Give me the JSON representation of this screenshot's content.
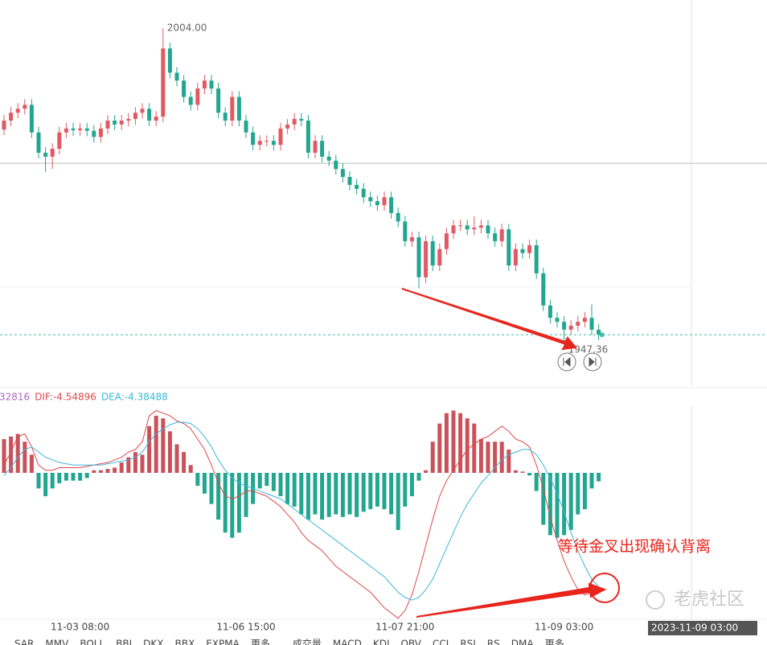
{
  "chart_data": [
    {
      "type": "candlestick",
      "open": [
        1986.0,
        1987.6,
        1989.0,
        1989.7,
        1990.4,
        1985.5,
        1981.9,
        1981.2,
        1982.6,
        1985.5,
        1986.2,
        1985.9,
        1986.2,
        1985.8,
        1984.7,
        1986.2,
        1987.6,
        1986.9,
        1987.6,
        1987.9,
        1989.0,
        1989.7,
        1987.6,
        1988.3,
        2000.4,
        1996.1,
        1994.7,
        1991.8,
        1990.4,
        1993.3,
        1994.7,
        1993.3,
        1989.0,
        1987.6,
        1991.8,
        1987.6,
        1985.5,
        1983.3,
        1984.0,
        1984.0,
        1983.3,
        1986.2,
        1986.9,
        1987.9,
        1987.6,
        1981.9,
        1984.0,
        1981.2,
        1980.5,
        1979.0,
        1977.6,
        1976.2,
        1975.5,
        1974.0,
        1973.3,
        1972.6,
        1974.0,
        1971.2,
        1969.7,
        1966.2,
        1966.9,
        1959.8,
        1966.2,
        1961.9,
        1964.8,
        1967.6,
        1969.0,
        1969.0,
        1968.3,
        1968.6,
        1969.0,
        1967.6,
        1966.2,
        1968.3,
        1961.9,
        1964.8,
        1964.1,
        1965.5,
        1960.5,
        1954.8,
        1952.6,
        1951.9,
        1950.5,
        1951.2,
        1951.9,
        1952.6,
        1950.5
      ],
      "high": [
        1988.6,
        1990.0,
        1990.7,
        1991.4,
        1991.4,
        1986.5,
        1982.9,
        1983.6,
        1986.5,
        1987.2,
        1987.2,
        1987.2,
        1987.2,
        1986.8,
        1987.2,
        1988.6,
        1988.6,
        1988.6,
        1988.9,
        1990.0,
        1990.7,
        1990.7,
        1989.3,
        2004.0,
        2001.4,
        1997.1,
        1995.7,
        1992.8,
        1994.3,
        1995.7,
        1995.7,
        1994.3,
        1990.0,
        1992.8,
        1992.8,
        1988.6,
        1986.5,
        1985.0,
        1985.0,
        1985.0,
        1987.2,
        1987.9,
        1988.9,
        1988.9,
        1988.6,
        1985.0,
        1985.0,
        1982.2,
        1981.5,
        1980.0,
        1978.6,
        1977.2,
        1976.5,
        1975.0,
        1974.3,
        1975.0,
        1975.0,
        1972.2,
        1970.7,
        1967.9,
        1967.9,
        1967.2,
        1967.2,
        1965.8,
        1968.6,
        1970.0,
        1970.0,
        1970.0,
        1970.6,
        1970.0,
        1970.0,
        1968.6,
        1969.3,
        1969.3,
        1965.8,
        1965.8,
        1966.5,
        1966.5,
        1961.5,
        1955.8,
        1953.6,
        1952.9,
        1952.2,
        1952.9,
        1953.6,
        1955.0,
        1951.5
      ],
      "low": [
        1985.0,
        1986.6,
        1988.0,
        1988.7,
        1984.5,
        1980.9,
        1978.5,
        1979.0,
        1981.6,
        1984.5,
        1984.9,
        1984.9,
        1984.8,
        1983.7,
        1983.7,
        1985.2,
        1985.9,
        1985.9,
        1986.6,
        1986.9,
        1988.0,
        1986.6,
        1986.6,
        1987.3,
        1995.1,
        1993.7,
        1990.8,
        1989.4,
        1989.4,
        1992.3,
        1992.3,
        1988.0,
        1986.6,
        1986.6,
        1986.6,
        1984.5,
        1982.3,
        1982.3,
        1983.0,
        1982.3,
        1982.3,
        1985.2,
        1985.9,
        1986.6,
        1980.9,
        1980.9,
        1980.2,
        1979.5,
        1978.0,
        1976.6,
        1975.2,
        1974.5,
        1973.0,
        1972.3,
        1971.6,
        1971.6,
        1970.2,
        1968.7,
        1965.2,
        1965.2,
        1957.8,
        1958.8,
        1960.9,
        1960.9,
        1963.8,
        1966.6,
        1968.0,
        1967.3,
        1967.3,
        1967.6,
        1966.6,
        1965.2,
        1965.2,
        1960.9,
        1960.9,
        1963.1,
        1963.1,
        1959.5,
        1953.8,
        1951.6,
        1950.9,
        1947.36,
        1949.5,
        1950.2,
        1950.9,
        1949.5,
        1948.6
      ],
      "close": [
        1987.6,
        1989.0,
        1989.7,
        1990.4,
        1985.5,
        1981.9,
        1981.2,
        1982.6,
        1985.5,
        1986.2,
        1985.9,
        1986.2,
        1985.8,
        1984.7,
        1986.2,
        1987.6,
        1986.9,
        1987.6,
        1987.9,
        1989.0,
        1989.7,
        1987.6,
        1988.3,
        2000.4,
        1996.1,
        1994.7,
        1991.8,
        1990.4,
        1993.3,
        1994.7,
        1993.3,
        1989.0,
        1987.6,
        1991.8,
        1987.6,
        1985.5,
        1983.3,
        1984.0,
        1984.0,
        1983.3,
        1986.2,
        1986.9,
        1987.9,
        1987.6,
        1981.9,
        1984.0,
        1981.2,
        1980.5,
        1979.0,
        1977.6,
        1976.2,
        1975.5,
        1974.0,
        1973.3,
        1972.6,
        1974.0,
        1971.2,
        1969.7,
        1966.2,
        1966.9,
        1959.8,
        1966.2,
        1961.9,
        1964.8,
        1967.6,
        1969.0,
        1969.0,
        1968.3,
        1968.6,
        1969.0,
        1967.6,
        1966.2,
        1968.3,
        1961.9,
        1964.8,
        1964.1,
        1965.5,
        1960.5,
        1954.8,
        1952.6,
        1951.9,
        1950.5,
        1951.2,
        1951.9,
        1952.6,
        1950.5,
        1949.6
      ],
      "ylim": [
        1940.5,
        2009
      ],
      "up_color": "#df5a63",
      "down_color": "#22a68f",
      "price_line_color": "#3cc0a8",
      "max_label": "2004.00",
      "min_label": "1947.36"
    },
    {
      "type": "macd",
      "categories": [
        null,
        null,
        null,
        null,
        null,
        null,
        null,
        null,
        null,
        null,
        null,
        "11-03 08:00",
        null,
        null,
        null,
        null,
        null,
        null,
        null,
        null,
        null,
        null,
        null,
        null,
        null,
        null,
        null,
        null,
        null,
        null,
        null,
        null,
        null,
        null,
        null,
        "11-06 15:00",
        null,
        null,
        null,
        null,
        null,
        null,
        null,
        null,
        null,
        null,
        null,
        null,
        null,
        null,
        null,
        null,
        null,
        null,
        null,
        null,
        null,
        null,
        "11-07 21:00",
        null,
        null,
        null,
        null,
        null,
        null,
        null,
        null,
        null,
        null,
        null,
        null,
        null,
        null,
        null,
        null,
        null,
        null,
        null,
        null,
        null,
        null,
        "11-09 03:00",
        null,
        null,
        null,
        null,
        null
      ],
      "series": [
        {
          "name": "32816",
          "color": "#a56cc1",
          "values": [
            1.3,
            1.4,
            1.5,
            1.2,
            0.7,
            -0.6,
            -0.9,
            -0.6,
            -0.4,
            -0.3,
            -0.3,
            -0.3,
            -0.2,
            0.1,
            0.1,
            0.15,
            0.2,
            0.4,
            0.6,
            0.8,
            0.7,
            1.8,
            2.2,
            2.1,
            1.6,
            1.1,
            0.8,
            0.3,
            -0.5,
            -0.8,
            -1.2,
            -1.8,
            -2.3,
            -2.5,
            -2.3,
            -1.7,
            -1.2,
            -0.6,
            -0.5,
            -0.7,
            -0.9,
            -1.2,
            -1.3,
            -1.6,
            -1.8,
            -1.6,
            -1.8,
            -1.7,
            -1.6,
            -1.7,
            -1.6,
            -1.7,
            -1.5,
            -1.4,
            -1.3,
            -1.4,
            -1.6,
            -2.2,
            -1.3,
            -0.9,
            -0.3,
            0.1,
            1.2,
            1.9,
            2.3,
            2.4,
            2.3,
            2.1,
            1.9,
            1.3,
            1.2,
            1.2,
            1.2,
            0.9,
            0.1,
            0.05,
            -0.1,
            -0.7,
            -2.0,
            -2.4,
            -2.5,
            -2.4,
            -2.2,
            -1.6,
            -1.4,
            -0.6,
            -0.32816
          ]
        },
        {
          "name": "DIF:-4.54896",
          "color": "#e0474c",
          "values": [
            0.3,
            0.8,
            1.4,
            1.5,
            1.0,
            0.3,
            0.1,
            0.1,
            0.2,
            0.2,
            0.2,
            0.2,
            0.25,
            0.3,
            0.35,
            0.4,
            0.5,
            0.6,
            0.8,
            0.9,
            1.2,
            2.2,
            2.4,
            2.3,
            2.2,
            2.0,
            1.9,
            1.7,
            1.3,
            0.9,
            0.3,
            -0.4,
            -0.9,
            -1.0,
            -0.9,
            -0.7,
            -0.7,
            -0.8,
            -0.9,
            -1.1,
            -1.3,
            -1.6,
            -1.9,
            -2.3,
            -2.6,
            -2.8,
            -3.0,
            -3.3,
            -3.6,
            -3.8,
            -4.0,
            -4.2,
            -4.4,
            -4.6,
            -4.9,
            -5.2,
            -5.4,
            -5.6,
            -5.3,
            -4.7,
            -3.8,
            -2.8,
            -1.8,
            -0.9,
            -0.3,
            0.1,
            0.5,
            0.9,
            1.1,
            1.3,
            1.4,
            1.6,
            1.8,
            1.6,
            1.3,
            1.2,
            1.0,
            0.3,
            -0.6,
            -1.7,
            -2.6,
            -3.4,
            -4.0,
            -4.5,
            -4.7,
            -4.6,
            -4.54896
          ]
        },
        {
          "name": "DEA:-4.38488",
          "color": "#3ab6d8",
          "values": [
            -0.1,
            0.2,
            0.6,
            0.9,
            1.0,
            0.8,
            0.6,
            0.5,
            0.4,
            0.35,
            0.3,
            0.3,
            0.3,
            0.3,
            0.3,
            0.35,
            0.4,
            0.45,
            0.5,
            0.6,
            0.8,
            1.2,
            1.5,
            1.7,
            1.85,
            1.95,
            1.95,
            1.9,
            1.7,
            1.4,
            1.0,
            0.5,
            0.1,
            -0.2,
            -0.4,
            -0.5,
            -0.6,
            -0.7,
            -0.8,
            -0.9,
            -1.0,
            -1.2,
            -1.4,
            -1.6,
            -1.8,
            -2.0,
            -2.2,
            -2.4,
            -2.6,
            -2.8,
            -3.0,
            -3.2,
            -3.4,
            -3.6,
            -3.8,
            -4.0,
            -4.3,
            -4.6,
            -4.8,
            -4.9,
            -4.8,
            -4.5,
            -4.1,
            -3.5,
            -2.9,
            -2.3,
            -1.7,
            -1.2,
            -0.8,
            -0.4,
            -0.1,
            0.2,
            0.5,
            0.7,
            0.8,
            0.9,
            0.9,
            0.7,
            0.3,
            -0.2,
            -0.8,
            -1.5,
            -2.3,
            -3.0,
            -3.6,
            -4.1,
            -4.38488
          ]
        }
      ],
      "ylim": [
        -5.64,
        2.57
      ],
      "up_color": "#c9525a",
      "down_color": "#22a68f",
      "annotation": "等待金叉出现确认背离"
    }
  ],
  "tooltip": "2023-11-09 03:00",
  "watermark": "老虎社区",
  "toolbar": [
    "SAR",
    "MMV",
    "BOLL",
    "BBI",
    "DKX",
    "BBX",
    "EXPMA",
    "更多",
    "成交量",
    "MACD",
    "KDJ",
    "OBV",
    "CCI",
    "RSI",
    "RS",
    "DMA",
    "更多"
  ]
}
